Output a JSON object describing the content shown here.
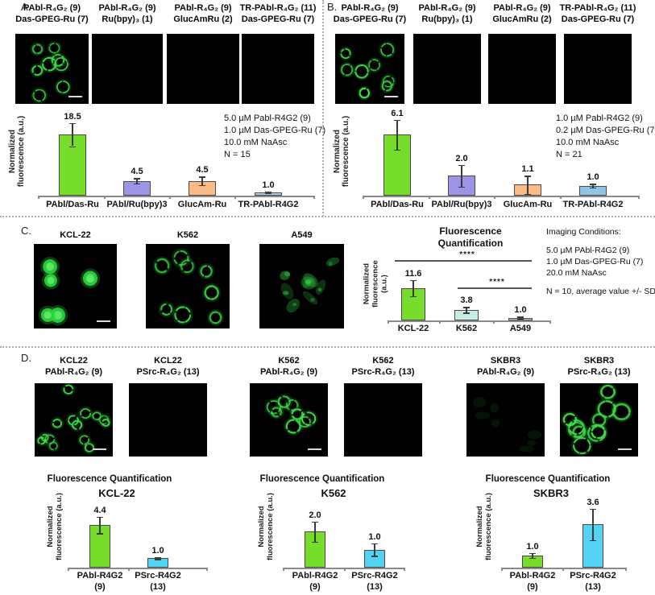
{
  "figure": {
    "panel_a": {
      "label": "A.",
      "columns": [
        {
          "title_line1": "PAbl-R₄G₂ (9)",
          "title_line2": "Das-GPEG-Ru (7)",
          "signal": "rings",
          "scale_bar": true
        },
        {
          "title_line1": "PAbl-R₄G₂ (9)",
          "title_line2": "Ru(bpy)₃ (1)",
          "signal": "none",
          "scale_bar": false
        },
        {
          "title_line1": "PAbl-R₄G₂ (9)",
          "title_line2": "GlucAmRu (2)",
          "signal": "none",
          "scale_bar": false
        },
        {
          "title_line1": "TR-PAbl-R₄G₂ (11)",
          "title_line2": "Das-GPEG-Ru (7)",
          "signal": "none",
          "scale_bar": false
        }
      ]
    },
    "panel_b": {
      "label": "B.",
      "columns": [
        {
          "title_line1": "PAbl-R₄G₂ (9)",
          "title_line2": "Das-GPEG-Ru (7)",
          "signal": "rings",
          "scale_bar": true
        },
        {
          "title_line1": "PAbl-R₄G₂ (9)",
          "title_line2": "Ru(bpy)₃ (1)",
          "signal": "none",
          "scale_bar": false
        },
        {
          "title_line1": "PAbl-R₄G₂ (9)",
          "title_line2": "GlucAmRu (2)",
          "signal": "none",
          "scale_bar": false
        },
        {
          "title_line1": "TR-PAbl-R₄G₂ (11)",
          "title_line2": "Das-GPEG-Ru (7)",
          "signal": "none",
          "scale_bar": false
        }
      ]
    },
    "panel_c": {
      "label": "C.",
      "columns": [
        {
          "title": "KCL-22",
          "signal": "solid",
          "scale_bar": true
        },
        {
          "title": "K562",
          "signal": "rings",
          "scale_bar": false
        },
        {
          "title": "A549",
          "signal": "diffuse",
          "scale_bar": false
        }
      ],
      "imaging_conditions": [
        "Imaging Conditions:",
        "",
        "5.0 µM PAbl-R4G2 (9)",
        "1.0 µM Das-GPEG-Ru (7)",
        "20.0 mM NaAsc",
        "",
        "N = 10, average value +/- SD"
      ]
    },
    "panel_d": {
      "label": "D.",
      "columns": [
        {
          "title_line1": "KCL22",
          "title_line2": "PAbl-R₄G₂ (9)",
          "signal": "rings_many",
          "scale_bar": true
        },
        {
          "title_line1": "KCL22",
          "title_line2": "PSrc-R₄G₂ (13)",
          "signal": "none",
          "scale_bar": false
        },
        {
          "title_line1": "K562",
          "title_line2": "PAbl-R₄G₂ (9)",
          "signal": "rings",
          "scale_bar": true
        },
        {
          "title_line1": "K562",
          "title_line2": "PSrc-R₄G₂ (13)",
          "signal": "none",
          "scale_bar": false
        },
        {
          "title_line1": "SKBR3",
          "title_line2": "PAbl-R₄G₂ (9)",
          "signal": "faint",
          "scale_bar": false
        },
        {
          "title_line1": "SKBR3",
          "title_line2": "PSrc-R₄G₂ (13)",
          "signal": "rings_large",
          "scale_bar": true
        }
      ]
    }
  },
  "colors": {
    "green": "#76dd2b",
    "purple": "#9c94e7",
    "salmon": "#fcba85",
    "lightblue_a": "#aad2e8",
    "lightblue_b": "#8fc4e4",
    "pale_cyan": "#c7ece3",
    "pale_salmon": "#f9c8b0",
    "cyan": "#53d3f1",
    "cell_green": "#3ce04a",
    "axis": "#8a8a8a"
  },
  "chart_data": [
    {
      "id": "chartA",
      "type": "bar",
      "panel": "A",
      "ylabel": "Normalized fluorescence (a.u.)",
      "ylabel_lines": [
        "Normalized",
        "fluorescence (a.u.)"
      ],
      "categories": [
        "PAbl/Das-Ru",
        "PAbl/Ru(bpy)3",
        "GlucAm-Ru",
        "TR-PAbl-R4G2"
      ],
      "values": [
        18.5,
        4.5,
        4.5,
        1.0
      ],
      "labels": [
        "18.5",
        "4.5",
        "4.5",
        "1.0"
      ],
      "errors": [
        3.5,
        0.8,
        1.3,
        0.2
      ],
      "bar_colors": [
        "green",
        "purple",
        "salmon",
        "lightblue_a"
      ],
      "ylim": [
        0,
        23
      ],
      "conditions": [
        "5.0 µM Pabl-R4G2 (9)",
        "1.0 µM Das-GPEG-Ru (7)",
        "10.0 mM NaAsc",
        "N = 15"
      ]
    },
    {
      "id": "chartB",
      "type": "bar",
      "panel": "B",
      "ylabel": "Normalized fluorescence (a.u.)",
      "ylabel_lines": [
        "Normalized",
        "fluorescence (a.u.)"
      ],
      "categories": [
        "PAbl/Das-Ru",
        "PAbl/Ru(bpy)3",
        "GlucAm-Ru",
        "TR-PAbl-R4G2"
      ],
      "values": [
        6.1,
        2.0,
        1.1,
        1.0
      ],
      "labels": [
        "6.1",
        "2.0",
        "1.1",
        "1.0"
      ],
      "errors": [
        1.5,
        1.1,
        0.9,
        0.2
      ],
      "bar_colors": [
        "green",
        "purple",
        "salmon",
        "lightblue_b"
      ],
      "ylim": [
        0,
        8
      ],
      "conditions": [
        "1.0 µM Pabl-R4G2 (9)",
        "0.2 µM Das-GPEG-Ru (7)",
        "10.0 mM NaAsc",
        "N = 21"
      ]
    },
    {
      "id": "chartC",
      "type": "bar",
      "panel": "C",
      "title": "Fluorescence Quantification",
      "title_lines": [
        "Fluorescence",
        "Quantification"
      ],
      "ylabel": "Normalized fluorescence (a.u.)",
      "ylabel_lines": [
        "Normalized",
        "fluorescence",
        "(a.u.)"
      ],
      "categories": [
        "KCL-22",
        "K562",
        "A549"
      ],
      "values": [
        11.6,
        3.8,
        1.0
      ],
      "labels": [
        "11.6",
        "3.8",
        "1.0"
      ],
      "errors": [
        2.9,
        1.0,
        0.35
      ],
      "bar_colors": [
        "green",
        "pale_cyan",
        "pale_salmon"
      ],
      "ylim": [
        0,
        15
      ],
      "significance": [
        {
          "pair": "KCL-22 vs A549",
          "label": "****"
        },
        {
          "pair": "K562 vs A549",
          "label": "****"
        }
      ]
    },
    {
      "id": "chartD1",
      "type": "bar",
      "panel": "D",
      "title": "Fluorescence Quantification",
      "title_lines": [
        "Fluorescence Quantification"
      ],
      "subtitle": "KCL-22",
      "ylabel": "Normalized fluorescence (a.u.)",
      "ylabel_lines": [
        "Normalized",
        "fluorescence (a.u.)"
      ],
      "categories": [
        "PAbl-R4G2",
        "PSrc-R4G2"
      ],
      "categories_line2": [
        "(9)",
        "(13)"
      ],
      "values": [
        4.4,
        1.0
      ],
      "labels": [
        "4.4",
        "1.0"
      ],
      "errors": [
        0.85,
        0.1
      ],
      "bar_colors": [
        "green",
        "cyan"
      ],
      "ylim": [
        0,
        5.5
      ]
    },
    {
      "id": "chartD2",
      "type": "bar",
      "panel": "D",
      "title": "Fluorescence Quantification",
      "title_lines": [
        "Fluorescence Quantification"
      ],
      "subtitle": "K562",
      "ylabel": "Normalized fluorescence (a.u.)",
      "ylabel_lines": [
        "Normalized",
        "fluorescence (a.u.)"
      ],
      "categories": [
        "PAbl-R4G2",
        "PSrc-R4G2"
      ],
      "categories_line2": [
        "(9)",
        "(13)"
      ],
      "values": [
        2.0,
        1.0
      ],
      "labels": [
        "2.0",
        "1.0"
      ],
      "errors": [
        0.55,
        0.35
      ],
      "bar_colors": [
        "green",
        "cyan"
      ],
      "ylim": [
        0,
        2.8
      ]
    },
    {
      "id": "chartD3",
      "type": "bar",
      "panel": "D",
      "title": "Fluorescence Quantification",
      "title_lines": [
        "Fluorescence Quantification"
      ],
      "subtitle": "SKBR3",
      "ylabel": "Normalized fluorescence (a.u.)",
      "ylabel_lines": [
        "Normalized",
        "fluorescence (a.u.)"
      ],
      "categories": [
        "PAbl-R4G2",
        "PSrc-R4G2"
      ],
      "categories_line2": [
        "(9)",
        "(13)"
      ],
      "values": [
        1.0,
        3.6
      ],
      "labels": [
        "1.0",
        "3.6"
      ],
      "errors": [
        0.2,
        1.3
      ],
      "bar_colors": [
        "green",
        "cyan"
      ],
      "ylim": [
        0,
        5
      ]
    }
  ]
}
